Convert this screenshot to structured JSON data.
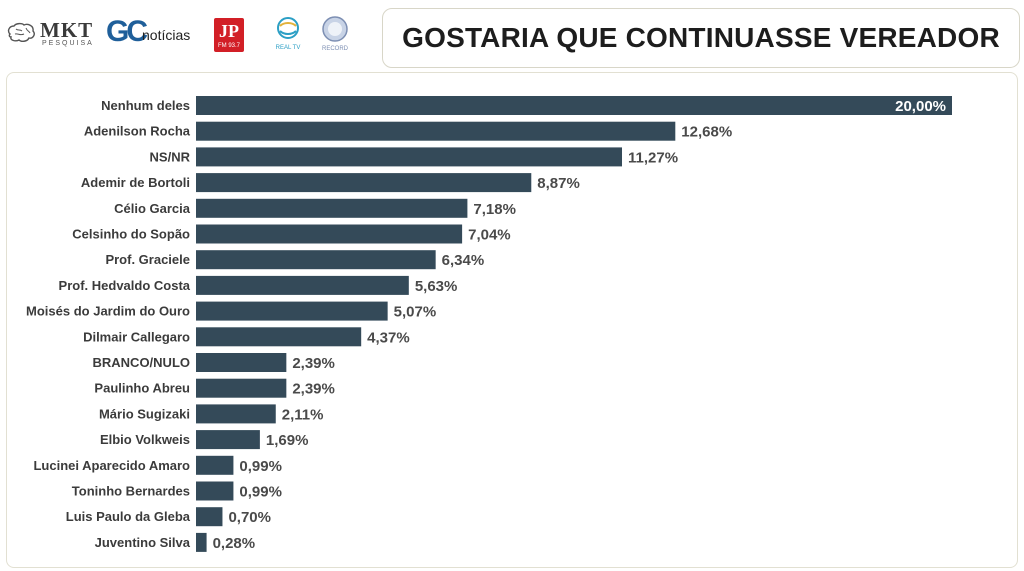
{
  "header": {
    "logos": [
      {
        "name": "mkt-pesquisa",
        "text": "MKT",
        "subtext": "PESQUISA"
      },
      {
        "name": "gc-noticias",
        "text": "GC",
        "subtext": "notícias"
      },
      {
        "name": "jovem-pan-fm",
        "text": "JP",
        "subtext": "FM 93.7"
      },
      {
        "name": "real-tv",
        "text": "REAL TV"
      },
      {
        "name": "record",
        "text": "RECORD"
      }
    ],
    "title": "GOSTARIA QUE CONTINUASSE VEREADOR"
  },
  "colors": {
    "bar": "#344a59",
    "label_inside": "#ffffff",
    "label_outside": "#4a4a4a"
  },
  "chart_data": {
    "type": "bar",
    "orientation": "horizontal",
    "title": "GOSTARIA QUE CONTINUASSE VEREADOR",
    "categories": [
      "Nenhum deles",
      "Adenilson Rocha",
      "NS/NR",
      "Ademir de Bortoli",
      "Célio Garcia",
      "Celsinho do Sopão",
      "Prof. Graciele",
      "Prof. Hedvaldo Costa",
      "Moisés do Jardim do Ouro",
      "Dilmair Callegaro",
      "BRANCO/NULO",
      "Paulinho Abreu",
      "Mário Sugizaki",
      "Elbio Volkweis",
      "Lucinei Aparecido Amaro",
      "Toninho Bernardes",
      "Luis Paulo da Gleba",
      "Juventino Silva"
    ],
    "values": [
      20.0,
      12.68,
      11.27,
      8.87,
      7.18,
      7.04,
      6.34,
      5.63,
      5.07,
      4.37,
      2.39,
      2.39,
      2.11,
      1.69,
      0.99,
      0.99,
      0.7,
      0.28
    ],
    "value_labels": [
      "20,00%",
      "12,68%",
      "11,27%",
      "8,87%",
      "7,18%",
      "7,04%",
      "6,34%",
      "5,63%",
      "5,07%",
      "4,37%",
      "2,39%",
      "2,39%",
      "2,11%",
      "1,69%",
      "0,99%",
      "0,99%",
      "0,70%",
      "0,28%"
    ],
    "xlim": [
      0,
      20
    ],
    "grid": false,
    "legend": "none"
  }
}
